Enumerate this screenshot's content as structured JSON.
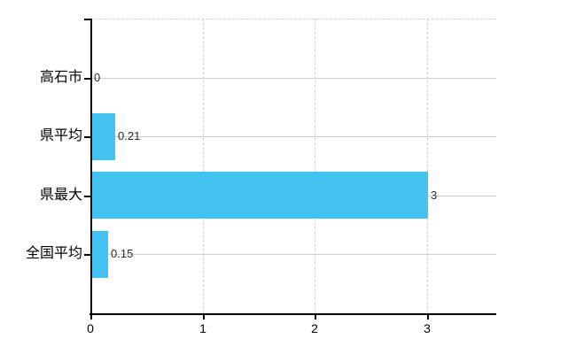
{
  "chart_data": {
    "type": "bar",
    "orientation": "horizontal",
    "title": "",
    "xlabel": "",
    "ylabel": "",
    "categories": [
      "高石市",
      "県平均",
      "県最大",
      "全国平均"
    ],
    "values": [
      0,
      0.21,
      3,
      0.15
    ],
    "value_labels": [
      "0",
      "0.21",
      "3",
      "0.15"
    ],
    "x_ticks": [
      0,
      1,
      2,
      3
    ],
    "x_tick_labels": [
      "0",
      "1",
      "2",
      "3"
    ],
    "xlim": [
      0,
      3.62
    ],
    "grid": true,
    "legend": false,
    "colors": {
      "bar_fill": "#41C2F0",
      "h_gridline": "#C9D3C9",
      "v_gridline": "#D6CFD6",
      "axis_line": "#000000",
      "tick": "#000000",
      "category_text": "#000000",
      "axis_text": "#000000",
      "value_text": "#2b2b2b",
      "background": "#ffffff"
    }
  }
}
